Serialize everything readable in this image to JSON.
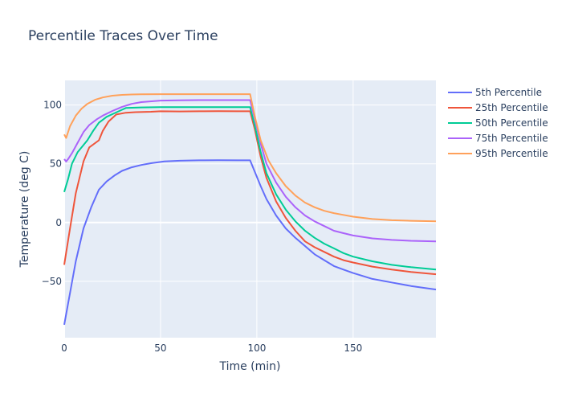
{
  "chart_data": {
    "type": "line",
    "title": "Percentile Traces Over Time",
    "xlabel": "Time (min)",
    "ylabel": "Temperature (deg C)",
    "xlim": [
      0,
      193
    ],
    "ylim": [
      -98,
      121
    ],
    "xticks": [
      0,
      50,
      100,
      150
    ],
    "yticks": [
      -50,
      0,
      50,
      100
    ],
    "grid": true,
    "legend_position": "top-right",
    "series": [
      {
        "name": "5th Percentile",
        "color": "#636efa",
        "x": [
          0,
          3,
          6,
          10,
          14,
          18,
          22,
          26,
          30,
          35,
          40,
          45,
          52,
          60,
          70,
          80,
          90,
          96.5,
          99,
          102,
          105,
          110,
          115,
          120,
          125,
          130,
          135,
          140,
          145,
          150,
          160,
          170,
          180,
          193
        ],
        "y": [
          -87,
          -60,
          -33,
          -5,
          13,
          28,
          35,
          40,
          44,
          47,
          49,
          50.5,
          52,
          52.6,
          53,
          53.1,
          53,
          53,
          43,
          31,
          20,
          6,
          -5,
          -13,
          -20,
          -27,
          -32,
          -37,
          -40,
          -43,
          -48,
          -51,
          -54,
          -57
        ]
      },
      {
        "name": "25th Percentile",
        "color": "#ef553b",
        "x": [
          0,
          3,
          6,
          10,
          13,
          18,
          20,
          23,
          27,
          32,
          37,
          45,
          50,
          60,
          70,
          80,
          90,
          96.5,
          99,
          102,
          105,
          110,
          115,
          120,
          125,
          130,
          135,
          140,
          145,
          150,
          160,
          170,
          180,
          193
        ],
        "y": [
          -36,
          -5,
          25,
          52,
          64,
          70,
          78,
          86,
          92,
          93.5,
          94,
          94.3,
          94.7,
          94.6,
          94.7,
          94.8,
          94.7,
          94.7,
          79,
          56,
          38,
          18,
          4,
          -7,
          -16,
          -21,
          -25,
          -29,
          -32,
          -34,
          -37.5,
          -40,
          -42,
          -44
        ]
      },
      {
        "name": "50th Percentile",
        "color": "#00cc96",
        "x": [
          0,
          2,
          4,
          7,
          10,
          12,
          15,
          18,
          22,
          26,
          30,
          32,
          40,
          50,
          60,
          70,
          80,
          90,
          96.5,
          99,
          102,
          105,
          110,
          115,
          120,
          125,
          130,
          135,
          140,
          145,
          150,
          160,
          170,
          180,
          193
        ],
        "y": [
          26,
          37,
          50,
          60,
          66,
          70,
          78,
          85,
          90,
          93,
          96,
          97.5,
          98,
          98.3,
          98.3,
          98.3,
          98.3,
          98.3,
          98.3,
          82,
          60,
          42,
          24,
          11,
          1,
          -7,
          -13,
          -18,
          -22,
          -26,
          -29,
          -33,
          -36,
          -38,
          -40
        ]
      },
      {
        "name": "75th Percentile",
        "color": "#ab63fa",
        "x": [
          0,
          1,
          2,
          4,
          7,
          10,
          13,
          17,
          20,
          25,
          30,
          35,
          40,
          50,
          60,
          70,
          80,
          90,
          96.5,
          99,
          102,
          105,
          110,
          115,
          120,
          125,
          130,
          135,
          140,
          145,
          150,
          160,
          170,
          180,
          193
        ],
        "y": [
          54,
          52,
          54,
          59,
          68,
          77,
          83,
          88,
          91,
          95,
          98.5,
          101,
          102.5,
          103.8,
          104,
          104.2,
          104.2,
          104.2,
          104.2,
          88,
          67,
          50,
          34,
          22,
          13,
          6,
          1,
          -3,
          -7,
          -9,
          -11,
          -13.5,
          -14.8,
          -15.5,
          -16
        ]
      },
      {
        "name": "95th Percentile",
        "color": "#ffa15a",
        "x": [
          0,
          1,
          3,
          6,
          9,
          12,
          16,
          20,
          25,
          30,
          35,
          40,
          50,
          60,
          70,
          80,
          90,
          96.5,
          99,
          102,
          106,
          110,
          115,
          120,
          125,
          130,
          135,
          140,
          145,
          150,
          160,
          170,
          180,
          193
        ],
        "y": [
          75,
          72,
          82,
          91,
          97,
          101,
          104.5,
          106.5,
          108,
          108.7,
          109,
          109.2,
          109.3,
          109.3,
          109.3,
          109.3,
          109.3,
          109.3,
          90,
          70,
          53,
          42,
          31,
          23,
          17,
          13,
          10,
          8,
          6.5,
          5,
          3,
          2,
          1.5,
          1
        ]
      }
    ]
  }
}
